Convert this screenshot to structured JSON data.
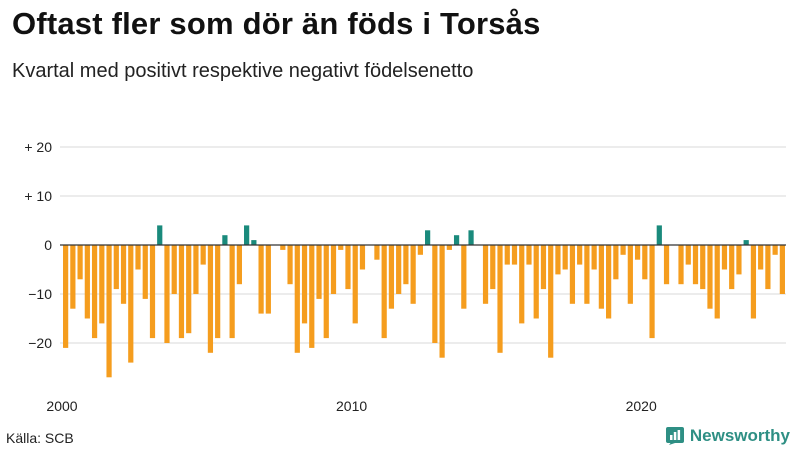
{
  "header": {
    "title": "Oftast fler som dör än föds i Torsås",
    "subtitle": "Kvartal med positivt respektive negativt födelsenetto"
  },
  "footer": {
    "source": "Källa: SCB",
    "brand": "Newsworthy"
  },
  "colors": {
    "positive": "#1a8a7c",
    "negative": "#f59d1e",
    "grid": "#d9d9d9",
    "zero_line": "#333333",
    "brand": "#2e8f84"
  },
  "chart_data": {
    "type": "bar",
    "title": "Oftast fler som dör än föds i Torsås",
    "subtitle": "Kvartal med positivt respektive negativt födelsenetto",
    "xlabel": "",
    "ylabel": "",
    "ylim": [
      -28,
      20
    ],
    "yticks": [
      20,
      10,
      0,
      -10,
      -20
    ],
    "ytick_labels": [
      "+ 20",
      "+ 10",
      "0",
      "−10",
      "−20"
    ],
    "x_tick_labels": [
      {
        "label": "2000",
        "index": 0
      },
      {
        "label": "2010",
        "index": 40
      },
      {
        "label": "2020",
        "index": 80
      }
    ],
    "start": "2000 Q1",
    "frequency": "quarter",
    "values": [
      -21,
      -13,
      -7,
      -15,
      -19,
      -16,
      -27,
      -9,
      -12,
      -24,
      -5,
      -11,
      -19,
      4,
      -20,
      -10,
      -19,
      -18,
      -10,
      -4,
      -22,
      -19,
      2,
      -19,
      -8,
      4,
      1,
      -14,
      -14,
      0,
      -1,
      -8,
      -22,
      -16,
      -21,
      -11,
      -19,
      -10,
      -1,
      -9,
      -16,
      -5,
      0,
      -3,
      -19,
      -13,
      -10,
      -8,
      -12,
      -2,
      3,
      -20,
      -23,
      -1,
      2,
      -13,
      3,
      0,
      -12,
      -9,
      -22,
      -4,
      -4,
      -16,
      -4,
      -15,
      -9,
      -23,
      -6,
      -5,
      -12,
      -4,
      -12,
      -5,
      -13,
      -15,
      -7,
      -2,
      -12,
      -3,
      -7,
      -19,
      4,
      -8,
      0,
      -8,
      -4,
      -8,
      -9,
      -13,
      -15,
      -5,
      -9,
      -6,
      1,
      -15,
      -5,
      -9,
      -2,
      -10
    ]
  }
}
